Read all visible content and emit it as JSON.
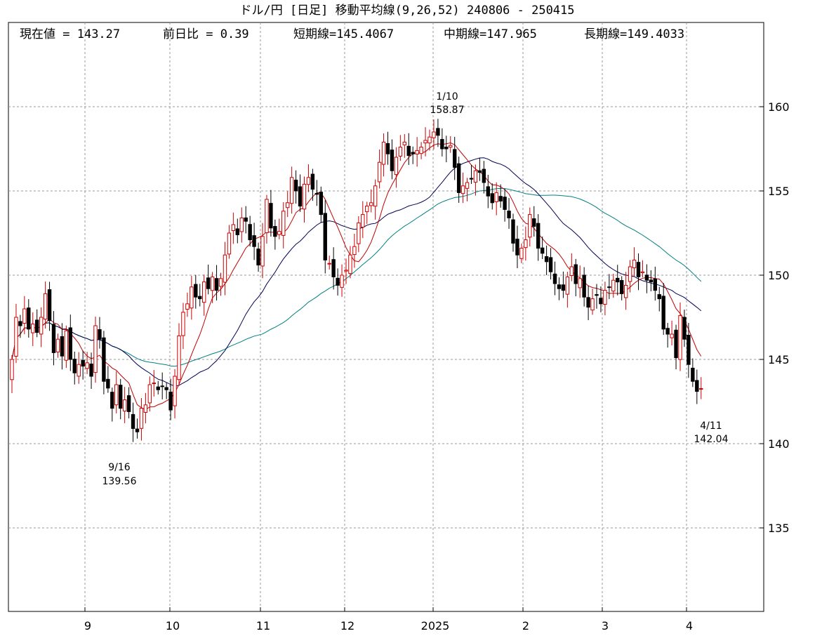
{
  "chart_data": {
    "type": "candlestick",
    "title": "ドル/円 [日足] 移動平均線(9,26,52) 240806 - 250415",
    "stats": [
      {
        "label": "現在値",
        "sep": " = ",
        "value": "143.27"
      },
      {
        "label": "前日比",
        "sep": " = ",
        "value": "0.39"
      },
      {
        "label": "短期線",
        "sep": "=",
        "value": "145.4067"
      },
      {
        "label": "中期線",
        "sep": "=",
        "value": "147.965"
      },
      {
        "label": "長期線",
        "sep": "=",
        "value": "149.4033"
      }
    ],
    "ylim": [
      130,
      165
    ],
    "y_ticks": [
      160,
      155,
      150,
      145,
      140,
      135
    ],
    "x_ticks": [
      "9",
      "10",
      "11",
      "12",
      "2025",
      "2",
      "3",
      "4"
    ],
    "grid": true,
    "colors": {
      "up": "#cc0000",
      "down": "#000000",
      "ma_short": "#c00000",
      "ma_mid": "#000055",
      "ma_long": "#008080",
      "grid": "#999999"
    },
    "annotations": [
      {
        "date": "1/10",
        "value": "158.87"
      },
      {
        "date": "9/16",
        "value": "139.56"
      },
      {
        "date": "4/11",
        "value": "142.04"
      }
    ],
    "closes": [
      145.0,
      147.5,
      147.0,
      148.0,
      146.8,
      147.1,
      146.6,
      147.5,
      148.9,
      147.3,
      145.4,
      146.2,
      145.2,
      146.7,
      145.0,
      144.2,
      144.7,
      144.6,
      144.8,
      144.0,
      147.0,
      146.2,
      143.7,
      143.3,
      142.1,
      143.5,
      142.1,
      142.6,
      141.9,
      140.9,
      140.7,
      142.1,
      142.3,
      143.5,
      143.6,
      143.2,
      143.4,
      143.2,
      142.0,
      144.0,
      146.4,
      147.8,
      148.3,
      149.3,
      148.7,
      148.6,
      149.6,
      149.2,
      149.9,
      149.1,
      149.8,
      151.2,
      152.5,
      153.0,
      152.4,
      153.4,
      153.2,
      152.1,
      151.7,
      150.6,
      152.3,
      154.5,
      152.8,
      152.3,
      152.6,
      153.8,
      154.3,
      155.8,
      155.0,
      154.1,
      155.4,
      155.8,
      155.1,
      154.8,
      153.6,
      150.9,
      150.7,
      149.9,
      149.4,
      150.0,
      150.3,
      151.2,
      151.7,
      153.1,
      153.6,
      154.1,
      154.3,
      155.3,
      156.7,
      157.9,
      157.2,
      156.2,
      157.0,
      157.6,
      157.9,
      157.1,
      157.2,
      157.4,
      157.6,
      158.0,
      158.2,
      158.5,
      158.3,
      157.5,
      157.5,
      157.7,
      156.4,
      154.9,
      155.3,
      155.5,
      155.7,
      156.2,
      156.1,
      155.5,
      154.7,
      154.3,
      154.9,
      154.4,
      153.9,
      153.4,
      151.9,
      151.2,
      151.6,
      152.1,
      153.6,
      152.9,
      151.6,
      151.3,
      150.8,
      150.2,
      149.5,
      149.2,
      149.1,
      149.9,
      150.5,
      149.5,
      149.8,
      148.7,
      148.1,
      148.6,
      148.8,
      148.3,
      149.1,
      149.3,
      149.7,
      149.6,
      148.9,
      149.4,
      150.5,
      150.9,
      149.9,
      150.2,
      149.7,
      149.6,
      149.1,
      148.6,
      146.8,
      146.5,
      146.5,
      145.1,
      147.6,
      146.2,
      144.7,
      143.7,
      143.1,
      143.27
    ]
  }
}
